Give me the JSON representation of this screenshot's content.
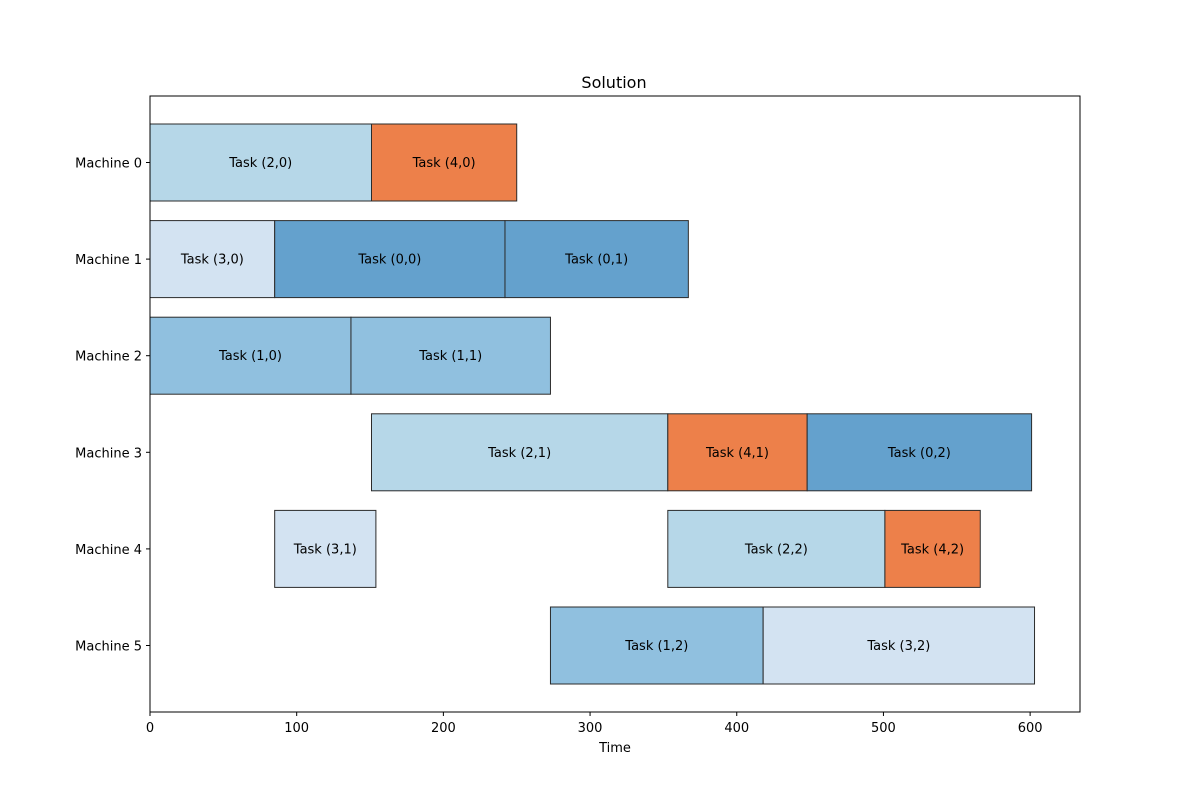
{
  "chart_data": {
    "type": "gantt",
    "title": "Solution",
    "xlabel": "Time",
    "ylabel": "",
    "xlim": [
      0,
      634
    ],
    "xticks": [
      0,
      100,
      200,
      300,
      400,
      500,
      600
    ],
    "grid": false,
    "machines": [
      "Machine 0",
      "Machine 1",
      "Machine 2",
      "Machine 3",
      "Machine 4",
      "Machine 5"
    ],
    "job_colors": {
      "0": "#64a1cd",
      "1": "#90c0df",
      "2": "#b6d7e8",
      "3": "#d3e3f2",
      "4": "#ed804a"
    },
    "tasks": [
      {
        "label": "Task (2,0)",
        "job": 2,
        "machine": 0,
        "start": 0,
        "end": 151
      },
      {
        "label": "Task (4,0)",
        "job": 4,
        "machine": 0,
        "start": 151,
        "end": 250
      },
      {
        "label": "Task (3,0)",
        "job": 3,
        "machine": 1,
        "start": 0,
        "end": 85
      },
      {
        "label": "Task (0,0)",
        "job": 0,
        "machine": 1,
        "start": 85,
        "end": 242
      },
      {
        "label": "Task (0,1)",
        "job": 0,
        "machine": 1,
        "start": 242,
        "end": 367
      },
      {
        "label": "Task (1,0)",
        "job": 1,
        "machine": 2,
        "start": 0,
        "end": 137
      },
      {
        "label": "Task (1,1)",
        "job": 1,
        "machine": 2,
        "start": 137,
        "end": 273
      },
      {
        "label": "Task (2,1)",
        "job": 2,
        "machine": 3,
        "start": 151,
        "end": 353
      },
      {
        "label": "Task (4,1)",
        "job": 4,
        "machine": 3,
        "start": 353,
        "end": 448
      },
      {
        "label": "Task (0,2)",
        "job": 0,
        "machine": 3,
        "start": 448,
        "end": 601
      },
      {
        "label": "Task (3,1)",
        "job": 3,
        "machine": 4,
        "start": 85,
        "end": 154
      },
      {
        "label": "Task (2,2)",
        "job": 2,
        "machine": 4,
        "start": 353,
        "end": 501
      },
      {
        "label": "Task (4,2)",
        "job": 4,
        "machine": 4,
        "start": 501,
        "end": 566
      },
      {
        "label": "Task (1,2)",
        "job": 1,
        "machine": 5,
        "start": 273,
        "end": 418
      },
      {
        "label": "Task (3,2)",
        "job": 3,
        "machine": 5,
        "start": 418,
        "end": 603
      }
    ]
  }
}
